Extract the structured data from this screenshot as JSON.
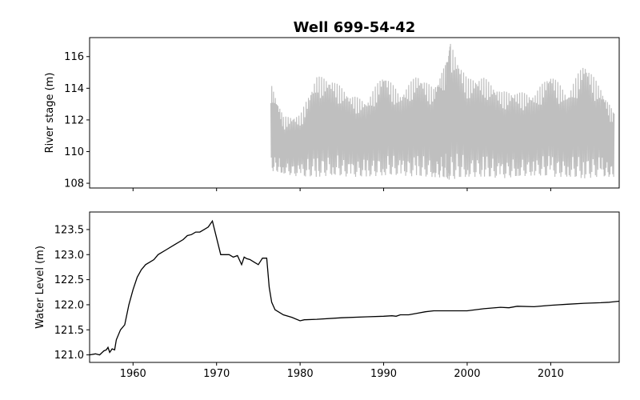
{
  "chart_data": {
    "title": "Well 699-54-42",
    "type": "line",
    "xlim": [
      1954.8,
      2018.2
    ],
    "x_ticks": [
      "1960",
      "1970",
      "1980",
      "1990",
      "2000",
      "2010"
    ],
    "x_tick_values": [
      1960,
      1970,
      1980,
      1990,
      2000,
      2010
    ],
    "panels": [
      {
        "id": "river-stage",
        "ylabel": "River stage (m)",
        "ylim": [
          107.7,
          117.2
        ],
        "y_ticks": [
          108,
          110,
          112,
          114,
          116
        ],
        "y_tick_labels": [
          "108",
          "110",
          "112",
          "114",
          "116"
        ],
        "color": "#bfbfbf",
        "series": [
          {
            "x": [
              1976.5,
              1978,
              1980,
              1982,
              1984,
              1986,
              1988,
              1990,
              1992,
              1994,
              1996,
              1997.5,
              1998,
              2000,
              2002,
              2004,
              2006,
              2008,
              2010,
              2012,
              2014,
              2016,
              2017.6
            ],
            "y_max": [
              114.3,
              112.2,
              112.3,
              114.8,
              114.5,
              113.6,
              113.2,
              115.0,
              113.6,
              114.9,
              114.0,
              115.6,
              116.8,
              114.6,
              114.7,
              113.8,
              113.8,
              113.6,
              115.0,
              113.6,
              115.7,
              114.0,
              112.4
            ],
            "y_min": [
              108.8,
              108.6,
              108.4,
              108.4,
              108.5,
              108.4,
              108.4,
              108.5,
              108.5,
              108.4,
              108.4,
              108.3,
              108.2,
              108.4,
              108.4,
              108.3,
              108.4,
              108.5,
              108.4,
              108.4,
              108.3,
              108.4,
              108.4
            ]
          }
        ]
      },
      {
        "id": "water-level",
        "ylabel": "Water Level (m)",
        "ylim": [
          120.85,
          123.85
        ],
        "y_ticks": [
          121.0,
          121.5,
          122.0,
          122.5,
          123.0,
          123.5
        ],
        "y_tick_labels": [
          "121.0",
          "121.5",
          "122.0",
          "122.5",
          "123.0",
          "123.5"
        ],
        "color": "#000000",
        "series": [
          {
            "x": [
              1954.8,
              1955.5,
              1956.0,
              1956.5,
              1956.8,
              1957.0,
              1957.2,
              1957.5,
              1957.8,
              1958.0,
              1958.5,
              1959.0,
              1959.5,
              1960.0,
              1960.5,
              1961.0,
              1961.5,
              1962.0,
              1962.5,
              1963.0,
              1964.0,
              1965.0,
              1966.0,
              1966.5,
              1967.0,
              1967.5,
              1968.0,
              1969.0,
              1969.5,
              1970.5,
              1971.5,
              1972.0,
              1972.5,
              1973.0,
              1973.3,
              1973.6,
              1974.0,
              1974.5,
              1975.0,
              1975.5,
              1976.0,
              1976.3,
              1976.6,
              1977.0,
              1978.0,
              1979.0,
              1980.0,
              1980.5,
              1982.0,
              1985.0,
              1988.0,
              1990.0,
              1991.0,
              1991.5,
              1992.0,
              1993.0,
              1994.0,
              1995.0,
              1996.0,
              1998.0,
              2000.0,
              2002.0,
              2004.0,
              2005.0,
              2006.0,
              2008.0,
              2010.0,
              2012.0,
              2014.0,
              2016.0,
              2017.0,
              2018.2
            ],
            "y": [
              121.0,
              121.02,
              121.0,
              121.08,
              121.1,
              121.15,
              121.05,
              121.12,
              121.1,
              121.3,
              121.5,
              121.6,
              122.0,
              122.3,
              122.55,
              122.7,
              122.8,
              122.85,
              122.9,
              123.0,
              123.1,
              123.2,
              123.3,
              123.38,
              123.4,
              123.45,
              123.45,
              123.55,
              123.67,
              123.0,
              123.0,
              122.95,
              122.98,
              122.8,
              122.95,
              122.92,
              122.9,
              122.85,
              122.8,
              122.93,
              122.93,
              122.35,
              122.05,
              121.9,
              121.8,
              121.75,
              121.68,
              121.7,
              121.71,
              121.74,
              121.76,
              121.77,
              121.78,
              121.77,
              121.8,
              121.8,
              121.83,
              121.86,
              121.88,
              121.88,
              121.88,
              121.92,
              121.95,
              121.94,
              121.97,
              121.96,
              121.99,
              122.01,
              122.03,
              122.04,
              122.05,
              122.07
            ]
          }
        ]
      }
    ]
  }
}
